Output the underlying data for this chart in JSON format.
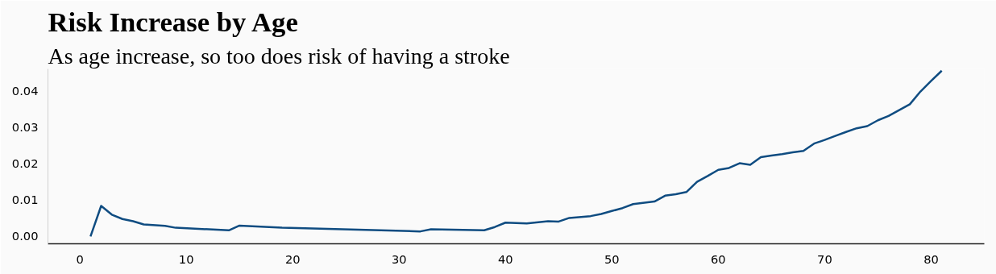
{
  "chart_data": {
    "type": "line",
    "title": "Risk Increase by Age",
    "subtitle": "As age increase, so too does risk of having a stroke",
    "x": [
      1,
      2,
      3,
      4,
      5,
      6,
      8,
      9,
      14,
      15,
      19,
      32,
      33,
      38,
      39,
      40,
      42,
      44,
      45,
      46,
      48,
      49,
      50,
      51,
      52,
      54,
      55,
      56,
      57,
      58,
      59,
      60,
      61,
      62,
      63,
      64,
      65,
      66,
      67,
      68,
      69,
      70,
      71,
      72,
      73,
      74,
      75,
      76,
      77,
      78,
      79,
      80,
      81
    ],
    "series": [
      {
        "color": "#0f4c81",
        "values": [
          0.0,
          0.0084,
          0.006,
          0.0048,
          0.0042,
          0.0033,
          0.0029,
          0.0024,
          0.0017,
          0.003,
          0.0024,
          0.0014,
          0.002,
          0.0017,
          0.0026,
          0.0038,
          0.0036,
          0.0042,
          0.0041,
          0.0051,
          0.0056,
          0.0062,
          0.007,
          0.0078,
          0.0089,
          0.0096,
          0.0112,
          0.0116,
          0.0122,
          0.015,
          0.0166,
          0.0183,
          0.0188,
          0.0201,
          0.0197,
          0.0218,
          0.0222,
          0.0226,
          0.0231,
          0.0235,
          0.0255,
          0.0265,
          0.0276,
          0.0287,
          0.0297,
          0.0303,
          0.0319,
          0.0331,
          0.0347,
          0.0363,
          0.0398,
          0.0427,
          0.0455
        ]
      }
    ],
    "xlim": [
      -3,
      85
    ],
    "ylim": [
      -0.002,
      0.046
    ],
    "xticks": [
      0,
      10,
      20,
      30,
      40,
      50,
      60,
      70,
      80
    ],
    "yticks": [
      {
        "value": 0,
        "label": "0.00"
      },
      {
        "value": 0.01,
        "label": "0.01"
      },
      {
        "value": 0.02,
        "label": "0.02"
      },
      {
        "value": 0.03,
        "label": "0.03"
      },
      {
        "value": 0.04,
        "label": "0.04"
      }
    ],
    "grid": false,
    "marker": "none",
    "line_style": "solid"
  }
}
